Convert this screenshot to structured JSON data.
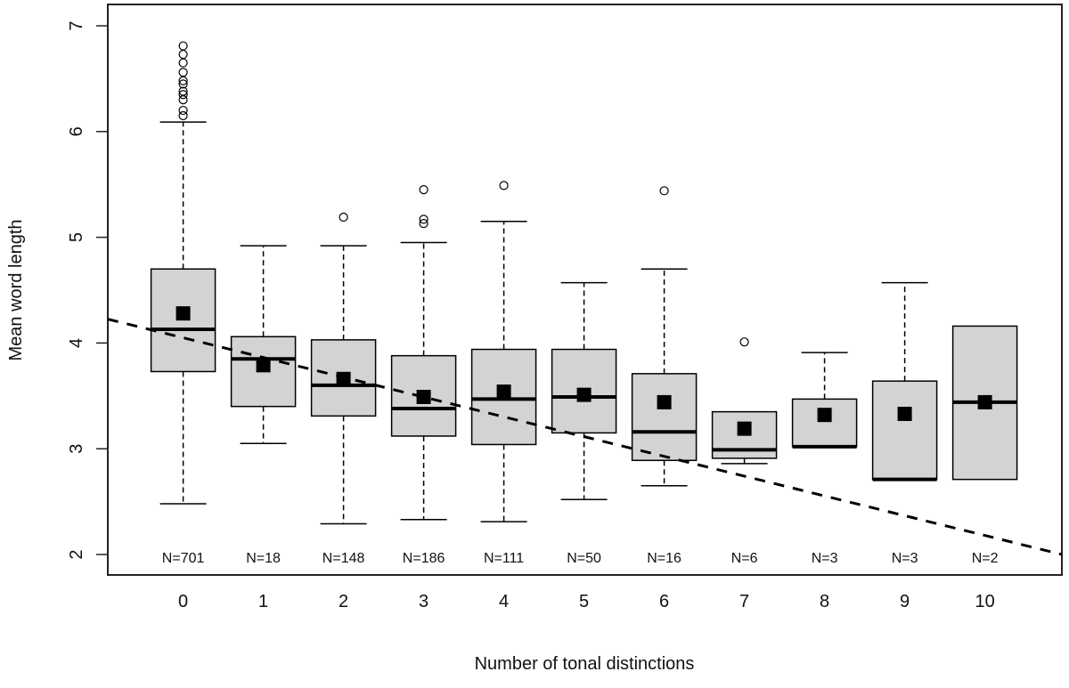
{
  "chart_data": {
    "type": "boxplot",
    "title": "",
    "xlabel": "Number of tonal distinctions",
    "ylabel": "Mean word length",
    "ylim": [
      2,
      7
    ],
    "xlim": [
      -0.94,
      10.96
    ],
    "yticks": [
      "2",
      "3",
      "4",
      "5",
      "6",
      "7"
    ],
    "grid": false,
    "categories": [
      "0",
      "1",
      "2",
      "3",
      "4",
      "5",
      "6",
      "7",
      "8",
      "9",
      "10"
    ],
    "counts": [
      "N=701",
      "N=18",
      "N=148",
      "N=186",
      "N=111",
      "N=50",
      "N=16",
      "N=6",
      "N=3",
      "N=3",
      "N=2"
    ],
    "boxes": [
      {
        "q1": 3.73,
        "median": 4.13,
        "q3": 4.7,
        "whisker_low": 2.48,
        "whisker_high": 6.09,
        "mean": 4.28,
        "outliers": [
          6.15,
          6.2,
          6.3,
          6.35,
          6.38,
          6.45,
          6.48,
          6.56,
          6.65,
          6.73,
          6.81
        ]
      },
      {
        "q1": 3.4,
        "median": 3.85,
        "q3": 4.06,
        "whisker_low": 3.05,
        "whisker_high": 4.92,
        "mean": 3.79,
        "outliers": []
      },
      {
        "q1": 3.31,
        "median": 3.6,
        "q3": 4.03,
        "whisker_low": 2.29,
        "whisker_high": 4.92,
        "mean": 3.66,
        "outliers": [
          5.19
        ]
      },
      {
        "q1": 3.12,
        "median": 3.38,
        "q3": 3.88,
        "whisker_low": 2.33,
        "whisker_high": 4.95,
        "mean": 3.49,
        "outliers": [
          5.13,
          5.17,
          5.45
        ]
      },
      {
        "q1": 3.04,
        "median": 3.47,
        "q3": 3.94,
        "whisker_low": 2.31,
        "whisker_high": 5.15,
        "mean": 3.54,
        "outliers": [
          5.49
        ]
      },
      {
        "q1": 3.15,
        "median": 3.49,
        "q3": 3.94,
        "whisker_low": 2.52,
        "whisker_high": 4.57,
        "mean": 3.51,
        "outliers": []
      },
      {
        "q1": 2.89,
        "median": 3.16,
        "q3": 3.71,
        "whisker_low": 2.65,
        "whisker_high": 4.7,
        "mean": 3.44,
        "outliers": [
          5.44
        ]
      },
      {
        "q1": 2.91,
        "median": 2.99,
        "q3": 3.35,
        "whisker_low": 2.86,
        "whisker_high": 3.35,
        "mean": 3.19,
        "outliers": [
          4.01
        ]
      },
      {
        "q1": 3.02,
        "median": 3.02,
        "q3": 3.47,
        "whisker_low": 3.02,
        "whisker_high": 3.91,
        "mean": 3.32,
        "outliers": []
      },
      {
        "q1": 2.71,
        "median": 2.71,
        "q3": 3.64,
        "whisker_low": 2.71,
        "whisker_high": 4.57,
        "mean": 3.33,
        "outliers": []
      },
      {
        "q1": 2.71,
        "median": 3.44,
        "q3": 4.16,
        "whisker_low": 2.71,
        "whisker_high": 4.16,
        "mean": 3.44,
        "outliers": []
      }
    ],
    "trend_line": {
      "intercept": 4.05,
      "slope": -0.187,
      "style": "dashed"
    },
    "colors": {
      "box_fill": "#d3d3d3",
      "stroke": "#000000",
      "mean_marker": "#000000"
    }
  }
}
